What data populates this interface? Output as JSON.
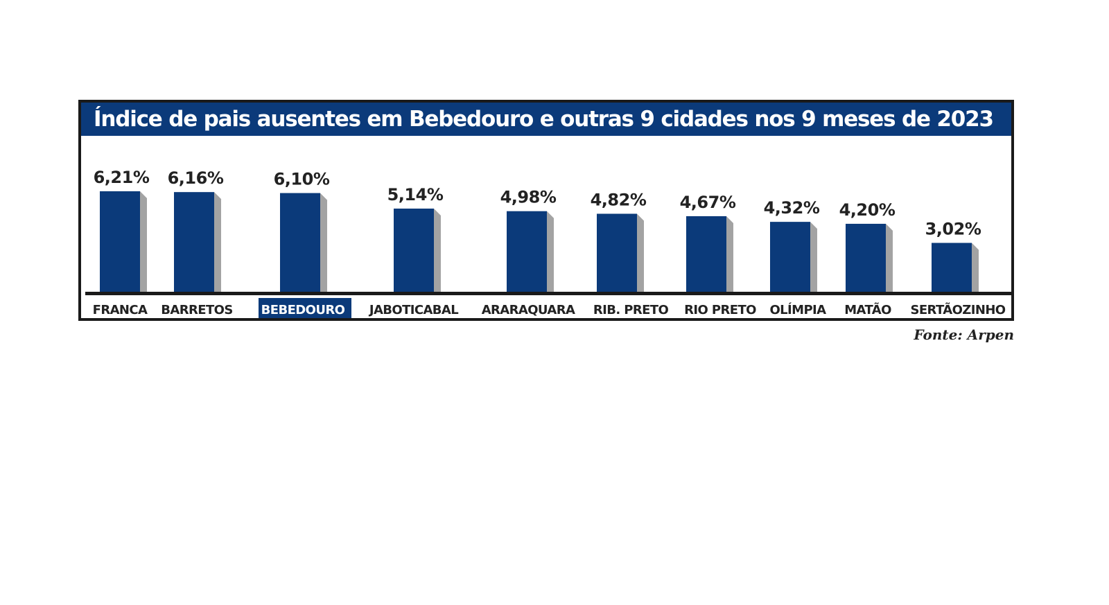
{
  "title": "Índice de pais ausentes em Bebedouro e outras 9 cidades nos 9 meses de 2023",
  "source": "Fonte: Arpen",
  "colors": {
    "bar": "#0b3a7a",
    "bar_shadow": "#a3a3a3",
    "title_bg": "#0b3a7a",
    "highlight_bg": "#0b3a7a",
    "baseline": "#1a1a1a"
  },
  "chart_data": {
    "type": "bar",
    "title": "Índice de pais ausentes em Bebedouro e outras 9 cidades nos 9 meses de 2023",
    "categories": [
      "FRANCA",
      "BARRETOS",
      "BEBEDOURO",
      "JABOTICABAL",
      "ARARAQUARA",
      "RIB. PRETO",
      "RIO PRETO",
      "OLÍMPIA",
      "MATÃO",
      "SERTÃOZINHO"
    ],
    "values": [
      6.21,
      6.16,
      6.1,
      5.14,
      4.98,
      4.82,
      4.67,
      4.32,
      4.2,
      3.02
    ],
    "labels": [
      "6,21%",
      "6,16%",
      "6,10%",
      "5,14%",
      "4,98%",
      "4,82%",
      "4,67%",
      "4,32%",
      "4,20%",
      "3,02%"
    ],
    "highlight": "BEBEDOURO",
    "grid": false,
    "legend": "none"
  }
}
